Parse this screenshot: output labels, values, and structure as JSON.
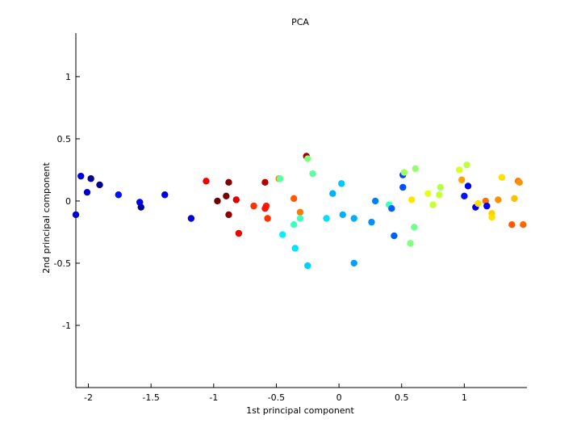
{
  "chart_data": {
    "type": "scatter",
    "title": "PCA",
    "xlabel": "1st principal component",
    "ylabel": "2nd principal component",
    "xlim": [
      -2.1,
      1.5
    ],
    "ylim": [
      -1.5,
      1.35
    ],
    "xticks": [
      {
        "value": -2,
        "label": "-2"
      },
      {
        "value": -1.5,
        "label": "-1.5"
      },
      {
        "value": -1,
        "label": "-1"
      },
      {
        "value": -0.5,
        "label": "-0.5"
      },
      {
        "value": 0,
        "label": "0"
      },
      {
        "value": 0.5,
        "label": "0.5"
      },
      {
        "value": 1,
        "label": "1"
      }
    ],
    "yticks": [
      {
        "value": 1,
        "label": "1"
      },
      {
        "value": 0.5,
        "label": "0.5"
      },
      {
        "value": 0,
        "label": "0"
      },
      {
        "value": -0.5,
        "label": "-0.5"
      },
      {
        "value": -1,
        "label": "-1"
      }
    ],
    "grid": false,
    "legend": "none",
    "points": [
      {
        "x": -2.1,
        "y": -0.11,
        "color": "#0000c8"
      },
      {
        "x": -2.06,
        "y": 0.2,
        "color": "#0000dc"
      },
      {
        "x": -2.01,
        "y": 0.07,
        "color": "#0000c8"
      },
      {
        "x": -1.98,
        "y": 0.18,
        "color": "#000096"
      },
      {
        "x": -1.91,
        "y": 0.13,
        "color": "#00008c"
      },
      {
        "x": -1.76,
        "y": 0.05,
        "color": "#0010ff"
      },
      {
        "x": -1.59,
        "y": -0.01,
        "color": "#0000f0"
      },
      {
        "x": -1.58,
        "y": -0.05,
        "color": "#0000a0"
      },
      {
        "x": -1.39,
        "y": 0.05,
        "color": "#0000dc"
      },
      {
        "x": -1.18,
        "y": -0.14,
        "color": "#0000dc"
      },
      {
        "x": -1.06,
        "y": 0.16,
        "color": "#f00000"
      },
      {
        "x": -0.97,
        "y": 0.0,
        "color": "#6e0000"
      },
      {
        "x": -0.9,
        "y": 0.04,
        "color": "#780000"
      },
      {
        "x": -0.88,
        "y": 0.15,
        "color": "#820000"
      },
      {
        "x": -0.88,
        "y": -0.11,
        "color": "#8c0000"
      },
      {
        "x": -0.82,
        "y": 0.01,
        "color": "#dc0000"
      },
      {
        "x": -0.8,
        "y": -0.26,
        "color": "#f00000"
      },
      {
        "x": -0.68,
        "y": -0.04,
        "color": "#ff3000"
      },
      {
        "x": -0.59,
        "y": 0.15,
        "color": "#b40000"
      },
      {
        "x": -0.58,
        "y": -0.04,
        "color": "#ff1c00"
      },
      {
        "x": -0.59,
        "y": -0.06,
        "color": "#ff1000"
      },
      {
        "x": -0.57,
        "y": -0.14,
        "color": "#ff3000"
      },
      {
        "x": -0.48,
        "y": 0.18,
        "color": "#ff8c00"
      },
      {
        "x": -0.47,
        "y": 0.18,
        "color": "#60ffa0"
      },
      {
        "x": -0.45,
        "y": -0.27,
        "color": "#00f0ff"
      },
      {
        "x": -0.36,
        "y": 0.02,
        "color": "#ff5a00"
      },
      {
        "x": -0.36,
        "y": -0.19,
        "color": "#40ffc0"
      },
      {
        "x": -0.35,
        "y": -0.38,
        "color": "#00e0ff"
      },
      {
        "x": -0.31,
        "y": -0.09,
        "color": "#ff7800"
      },
      {
        "x": -0.31,
        "y": -0.14,
        "color": "#40ffc0"
      },
      {
        "x": -0.26,
        "y": 0.36,
        "color": "#a00000"
      },
      {
        "x": -0.25,
        "y": 0.34,
        "color": "#80ff80"
      },
      {
        "x": -0.25,
        "y": -0.52,
        "color": "#00d0ff"
      },
      {
        "x": -0.21,
        "y": 0.22,
        "color": "#60ffa0"
      },
      {
        "x": -0.1,
        "y": -0.14,
        "color": "#00e0ff"
      },
      {
        "x": -0.05,
        "y": 0.06,
        "color": "#00b0ff"
      },
      {
        "x": 0.02,
        "y": 0.14,
        "color": "#00c8ff"
      },
      {
        "x": 0.03,
        "y": -0.11,
        "color": "#00b0ff"
      },
      {
        "x": 0.12,
        "y": -0.14,
        "color": "#00b0ff"
      },
      {
        "x": 0.12,
        "y": -0.5,
        "color": "#00a0ff"
      },
      {
        "x": 0.26,
        "y": -0.17,
        "color": "#0090ff"
      },
      {
        "x": 0.29,
        "y": 0.0,
        "color": "#0080ff"
      },
      {
        "x": 0.4,
        "y": -0.03,
        "color": "#40ffc0"
      },
      {
        "x": 0.42,
        "y": -0.06,
        "color": "#0060ff"
      },
      {
        "x": 0.44,
        "y": -0.28,
        "color": "#0060ff"
      },
      {
        "x": 0.51,
        "y": 0.21,
        "color": "#0040ff"
      },
      {
        "x": 0.51,
        "y": 0.11,
        "color": "#0050ff"
      },
      {
        "x": 0.52,
        "y": 0.23,
        "color": "#a0ff60"
      },
      {
        "x": 0.57,
        "y": -0.34,
        "color": "#80ff80"
      },
      {
        "x": 0.58,
        "y": 0.01,
        "color": "#ffe600"
      },
      {
        "x": 0.6,
        "y": -0.21,
        "color": "#70ff90"
      },
      {
        "x": 0.61,
        "y": 0.26,
        "color": "#90ff70"
      },
      {
        "x": 0.71,
        "y": 0.06,
        "color": "#e6ff20"
      },
      {
        "x": 0.75,
        "y": -0.03,
        "color": "#c8ff38"
      },
      {
        "x": 0.8,
        "y": 0.05,
        "color": "#c8ff38"
      },
      {
        "x": 0.81,
        "y": 0.11,
        "color": "#b4ff4c"
      },
      {
        "x": 0.96,
        "y": 0.25,
        "color": "#d8ff28"
      },
      {
        "x": 0.98,
        "y": 0.17,
        "color": "#ffa000"
      },
      {
        "x": 1.0,
        "y": 0.04,
        "color": "#0010ff"
      },
      {
        "x": 1.02,
        "y": 0.29,
        "color": "#c0ff40"
      },
      {
        "x": 1.03,
        "y": 0.12,
        "color": "#0000f0"
      },
      {
        "x": 1.09,
        "y": -0.05,
        "color": "#0000e0"
      },
      {
        "x": 1.11,
        "y": -0.02,
        "color": "#ffe000"
      },
      {
        "x": 1.17,
        "y": 0.0,
        "color": "#ff7000"
      },
      {
        "x": 1.18,
        "y": -0.04,
        "color": "#0000ff"
      },
      {
        "x": 1.22,
        "y": -0.1,
        "color": "#ffd000"
      },
      {
        "x": 1.22,
        "y": -0.13,
        "color": "#ffe000"
      },
      {
        "x": 1.27,
        "y": 0.01,
        "color": "#ff9000"
      },
      {
        "x": 1.3,
        "y": 0.19,
        "color": "#ffe000"
      },
      {
        "x": 1.38,
        "y": -0.19,
        "color": "#ff5a00"
      },
      {
        "x": 1.4,
        "y": 0.02,
        "color": "#ffc000"
      },
      {
        "x": 1.43,
        "y": 0.16,
        "color": "#ff7000"
      },
      {
        "x": 1.44,
        "y": 0.15,
        "color": "#ff9000"
      },
      {
        "x": 1.47,
        "y": -0.19,
        "color": "#ff6400"
      }
    ]
  }
}
